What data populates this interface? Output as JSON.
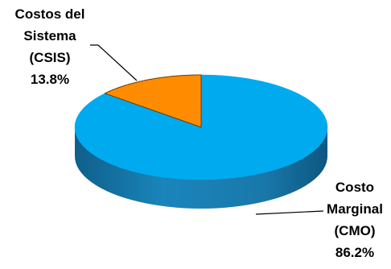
{
  "chart_data": {
    "type": "pie",
    "title": "",
    "three_d": true,
    "slices": [
      {
        "name": "Costo Marginal (CMO)",
        "label_lines": [
          "Costo",
          "Marginal",
          "(CMO)"
        ],
        "value": 86.2,
        "value_label": "86.2%",
        "color": "#00aaee",
        "side_color": "#1a78a8"
      },
      {
        "name": "Costos del Sistema (CSIS)",
        "label_lines": [
          "Costos del",
          "Sistema",
          "(CSIS)"
        ],
        "value": 13.8,
        "value_label": "13.8%",
        "color": "#ff8c00",
        "side_color": "#b85f00"
      }
    ],
    "legend": "none"
  }
}
